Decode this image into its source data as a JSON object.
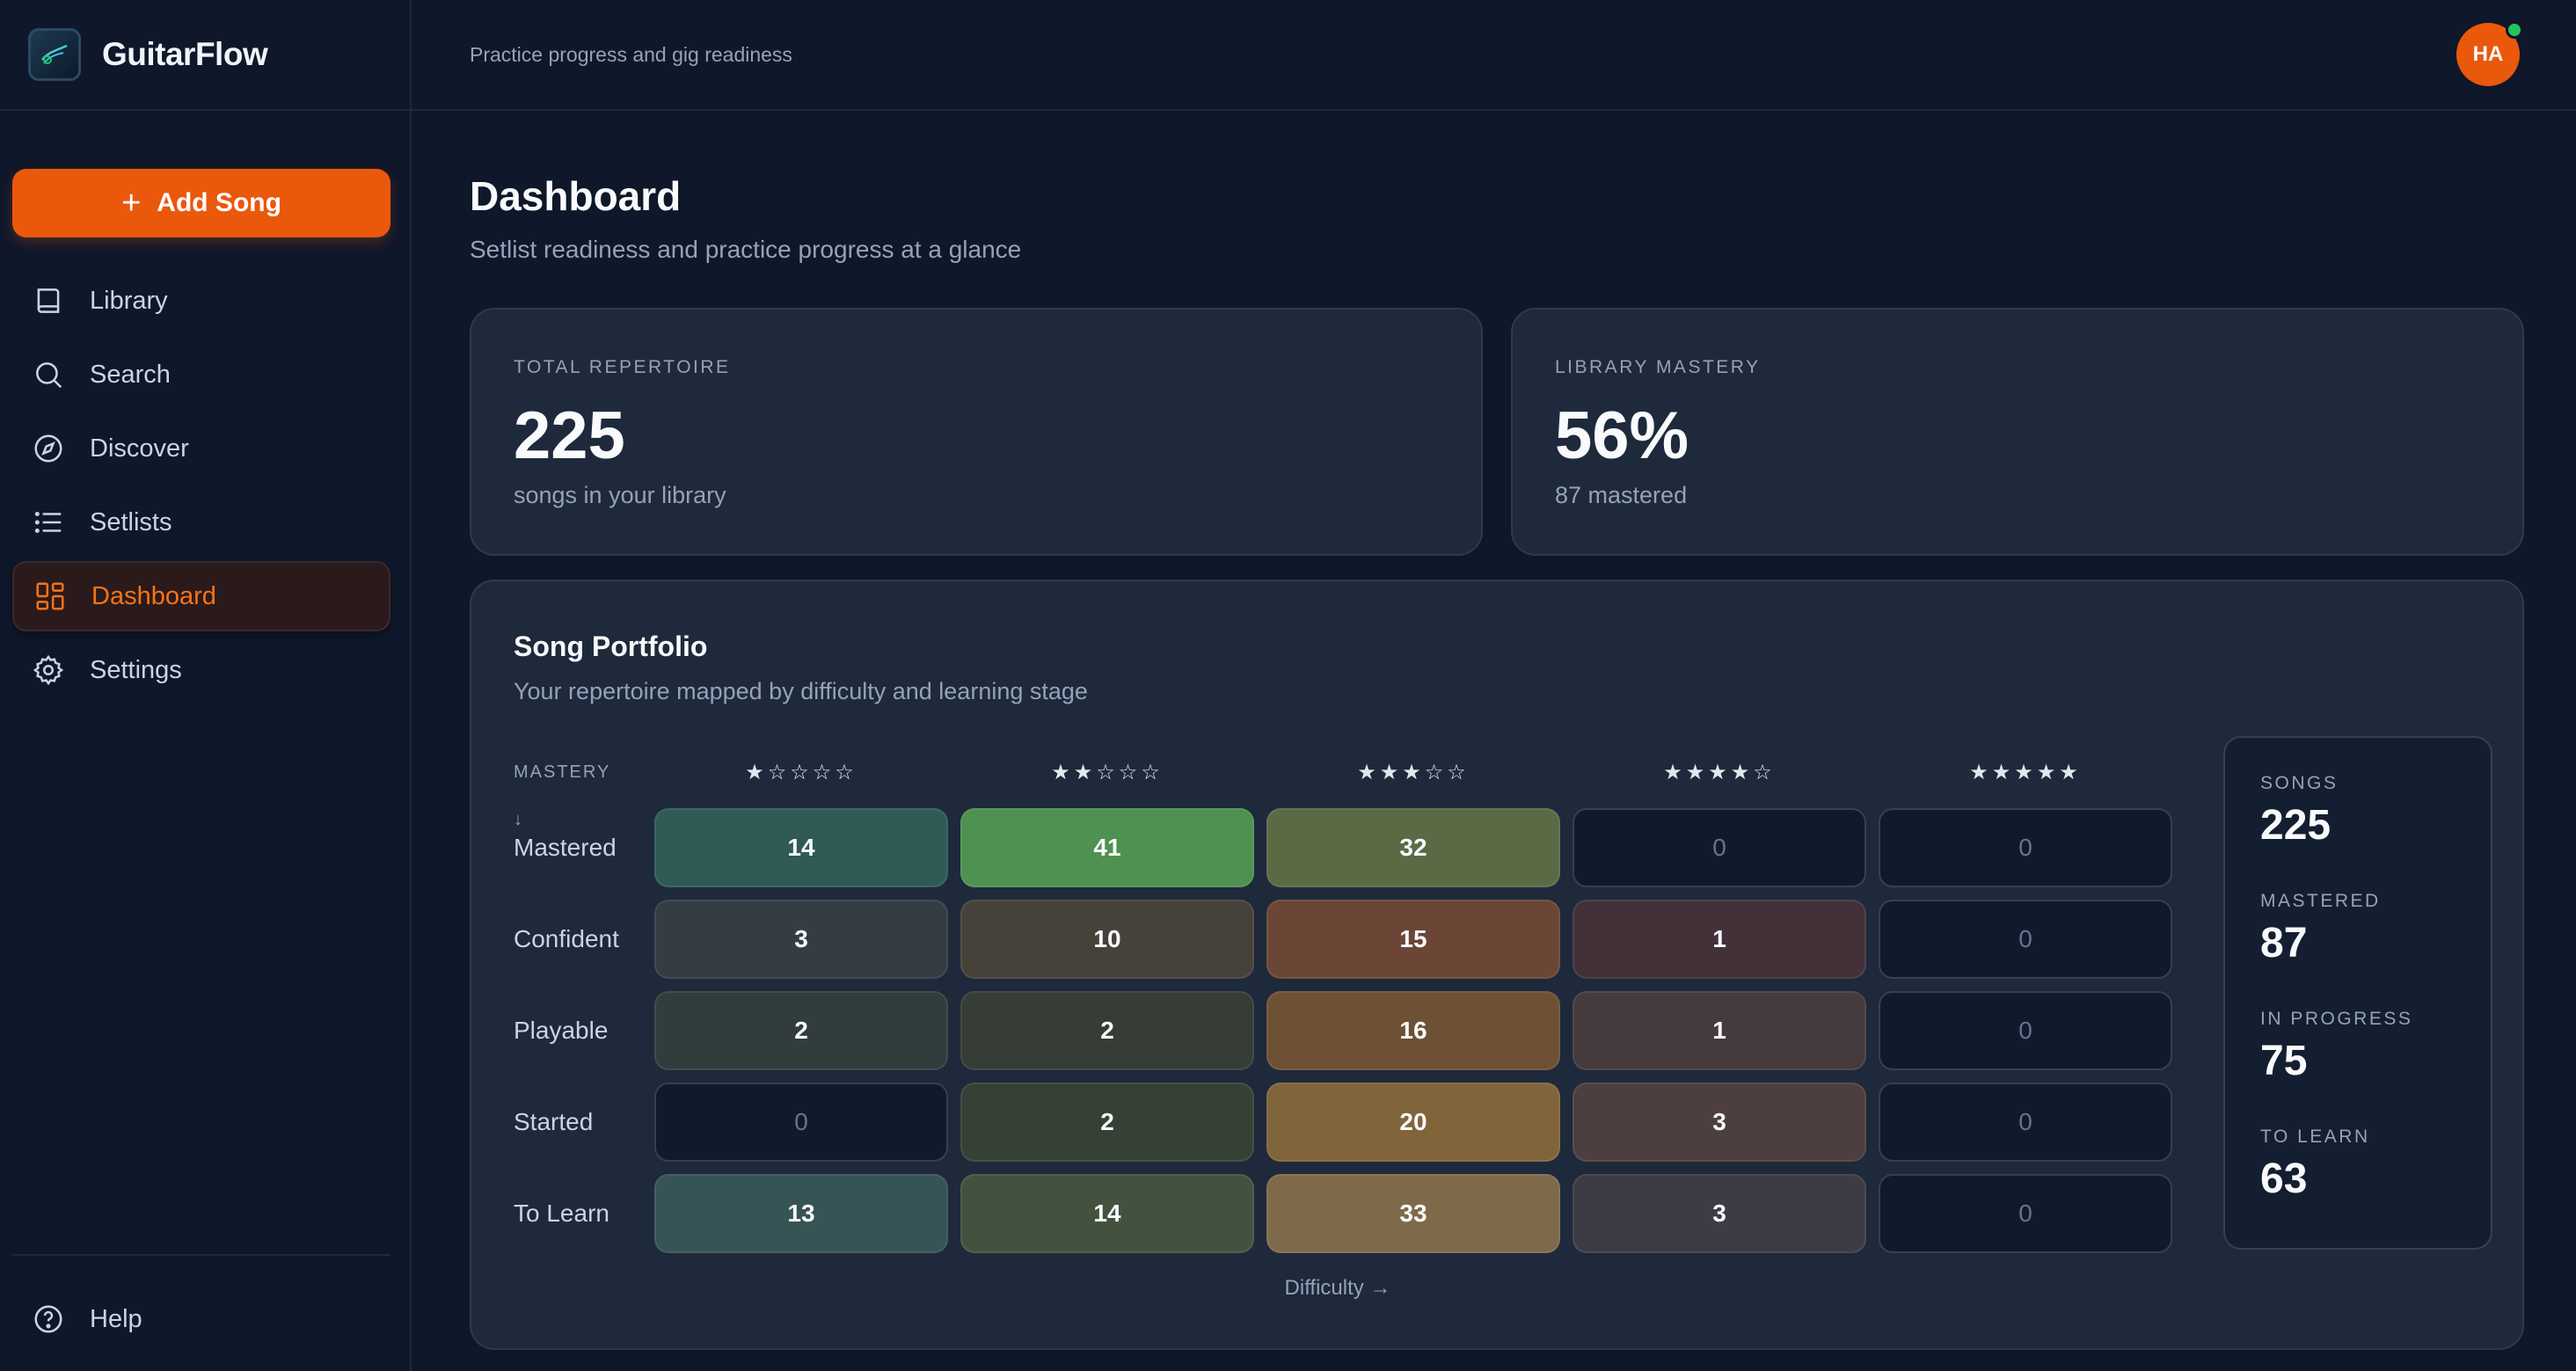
{
  "brand": {
    "name": "GuitarFlow"
  },
  "sidebar": {
    "add_label": "Add Song",
    "items": [
      {
        "label": "Library",
        "icon": "book-icon"
      },
      {
        "label": "Search",
        "icon": "search-icon"
      },
      {
        "label": "Discover",
        "icon": "compass-icon"
      },
      {
        "label": "Setlists",
        "icon": "list-icon"
      },
      {
        "label": "Dashboard",
        "icon": "grid-icon",
        "active": true
      },
      {
        "label": "Settings",
        "icon": "gear-icon"
      }
    ],
    "help_label": "Help"
  },
  "topbar": {
    "subtitle": "Practice progress and gig readiness",
    "avatar_initials": "HA"
  },
  "page": {
    "title": "Dashboard",
    "subtitle": "Setlist readiness and practice progress at a glance"
  },
  "stats": [
    {
      "label": "TOTAL REPERTOIRE",
      "value": "225",
      "desc": "songs in your library"
    },
    {
      "label": "LIBRARY MASTERY",
      "value": "56%",
      "desc": "87 mastered"
    }
  ],
  "portfolio": {
    "title": "Song Portfolio",
    "subtitle": "Your repertoire mapped by difficulty and learning stage",
    "mastery_axis": "MASTERY ↓",
    "difficulty_axis": "Difficulty →",
    "difficulty_levels": [
      "★☆☆☆☆",
      "★★☆☆☆",
      "★★★☆☆",
      "★★★★☆",
      "★★★★★"
    ],
    "rows": [
      {
        "label": "Mastered",
        "values": [
          "14",
          "41",
          "32",
          "0",
          "0"
        ]
      },
      {
        "label": "Confident",
        "values": [
          "3",
          "10",
          "15",
          "1",
          "0"
        ]
      },
      {
        "label": "Playable",
        "values": [
          "2",
          "2",
          "16",
          "1",
          "0"
        ]
      },
      {
        "label": "Started",
        "values": [
          "0",
          "2",
          "20",
          "3",
          "0"
        ]
      },
      {
        "label": "To Learn",
        "values": [
          "13",
          "14",
          "33",
          "3",
          "0"
        ]
      }
    ],
    "cell_colors": [
      [
        "#2f5a55",
        "#4e9150",
        "#5a6a45",
        "",
        ""
      ],
      [
        "#343c44",
        "#46423a",
        "#6b4636",
        "#43313a",
        ""
      ],
      [
        "#313d3c",
        "#363c36",
        "#6e5034",
        "#453a3c",
        ""
      ],
      [
        "",
        "#364136",
        "#80643a",
        "#4d3f3f",
        ""
      ],
      [
        "#365355",
        "#43523f",
        "#7e6a4a",
        "#3d3c45",
        ""
      ]
    ],
    "summary": [
      {
        "label": "SONGS",
        "value": "225"
      },
      {
        "label": "MASTERED",
        "value": "87"
      },
      {
        "label": "IN PROGRESS",
        "value": "75"
      },
      {
        "label": "TO LEARN",
        "value": "63"
      }
    ]
  },
  "colors": {
    "accent": "#ea580c",
    "background": "#0f172a",
    "card": "#1e293b",
    "online": "#22c55e"
  }
}
